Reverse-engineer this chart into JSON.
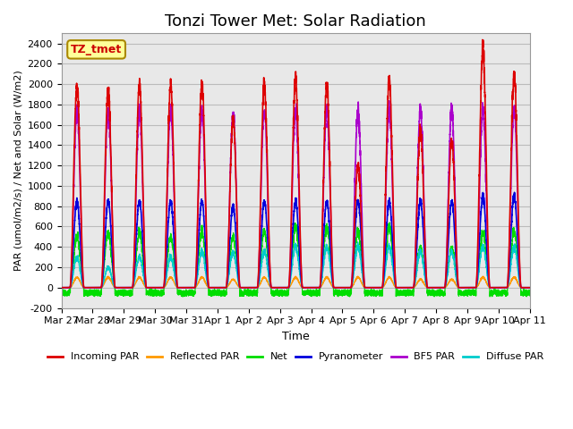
{
  "title": "Tonzi Tower Met: Solar Radiation",
  "xlabel": "Time",
  "ylabel": "PAR (umol/m2/s) / Net and Solar (W/m2)",
  "ylim": [
    -200,
    2500
  ],
  "yticks": [
    -200,
    0,
    200,
    400,
    600,
    800,
    1000,
    1200,
    1400,
    1600,
    1800,
    2000,
    2200,
    2400
  ],
  "num_days": 15,
  "xtick_labels": [
    "Mar 27",
    "Mar 28",
    "Mar 29",
    "Mar 30",
    "Mar 31",
    "Apr 1",
    "Apr 2",
    "Apr 3",
    "Apr 4",
    "Apr 5",
    "Apr 6",
    "Apr 7",
    "Apr 8",
    "Apr 9",
    "Apr 10",
    "Apr 11"
  ],
  "line_colors": {
    "incoming_par": "#dd0000",
    "reflected_par": "#ff9900",
    "net": "#00dd00",
    "pyranometer": "#0000dd",
    "bf5_par": "#aa00cc",
    "diffuse_par": "#00cccc"
  },
  "legend_labels": [
    "Incoming PAR",
    "Reflected PAR",
    "Net",
    "Pyranometer",
    "BF5 PAR",
    "Diffuse PAR"
  ],
  "annotation_text": "TZ_tmet",
  "annotation_color": "#cc0000",
  "annotation_bg": "#ffff99",
  "annotation_border": "#aa8800",
  "background_color": "#ffffff",
  "grid_color": "#bbbbbb",
  "title_fontsize": 13,
  "incoming_peaks": [
    2000,
    1950,
    2000,
    2000,
    2000,
    1650,
    2000,
    2050,
    2000,
    1200,
    2050,
    1550,
    1450,
    2350,
    2100
  ],
  "bf5_peaks": [
    1750,
    1750,
    1750,
    1750,
    1750,
    1700,
    1750,
    1750,
    1750,
    1750,
    1750,
    1750,
    1750,
    1750,
    1750
  ],
  "pyrano_peaks": [
    850,
    850,
    850,
    850,
    850,
    800,
    850,
    850,
    850,
    850,
    850,
    850,
    850,
    900,
    900
  ],
  "net_peaks": [
    500,
    550,
    550,
    500,
    550,
    500,
    550,
    600,
    600,
    550,
    600,
    400,
    400,
    550,
    550
  ],
  "diffuse_peaks": [
    300,
    200,
    300,
    300,
    350,
    350,
    350,
    400,
    400,
    400,
    400,
    350,
    350,
    400,
    400
  ],
  "reflected_peaks": [
    100,
    100,
    100,
    100,
    100,
    80,
    100,
    100,
    100,
    100,
    100,
    80,
    80,
    100,
    100
  ]
}
